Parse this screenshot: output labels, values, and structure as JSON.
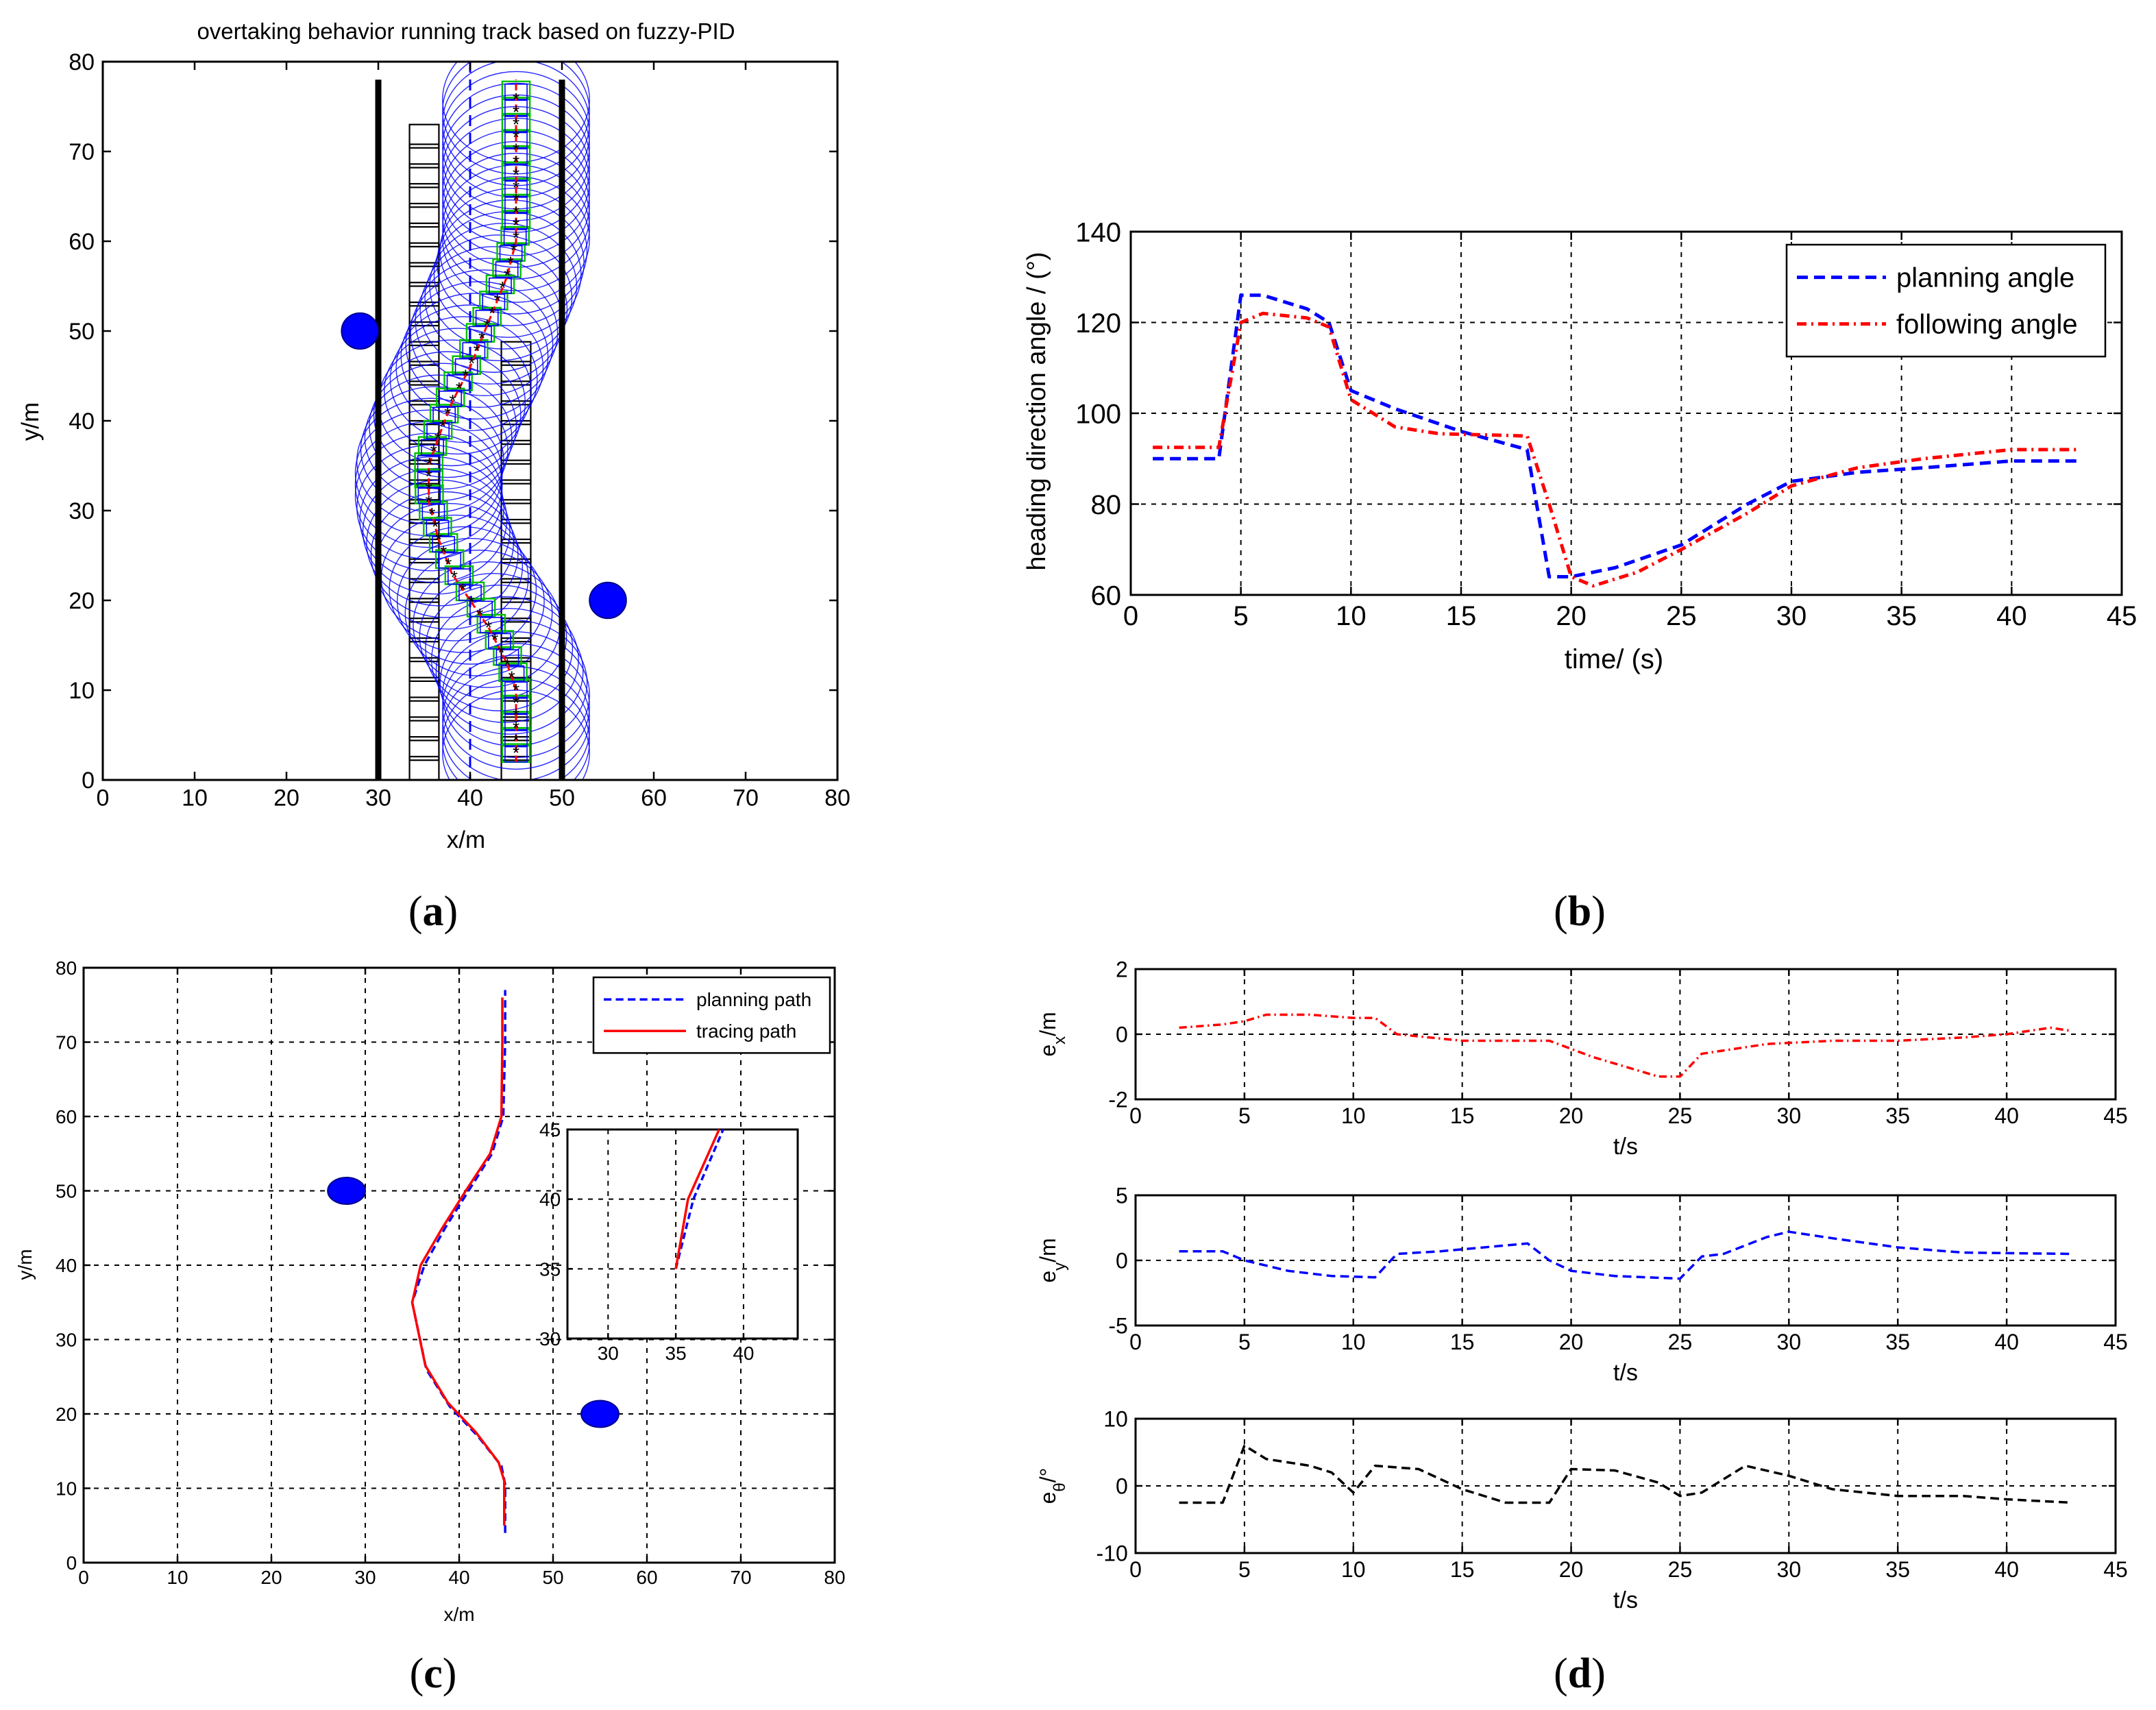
{
  "chart_data": [
    {
      "id": "a",
      "caption": "(a)",
      "type": "scatter",
      "title": "overtaking behavior running track based on fuzzy-PID",
      "xlabel": "x/m",
      "ylabel": "y/m",
      "xlim": [
        0,
        80
      ],
      "ylim": [
        0,
        80
      ],
      "xticks": [
        0,
        10,
        20,
        30,
        40,
        50,
        60,
        70,
        80
      ],
      "yticks": [
        0,
        10,
        20,
        30,
        40,
        50,
        60,
        70,
        80
      ],
      "grid": false,
      "road_boundaries_x": [
        30,
        50
      ],
      "lane_divider_x": 40,
      "obstacles": [
        [
          28,
          50
        ],
        [
          55,
          20
        ]
      ],
      "static_vehicle_column_x": 35,
      "static_vehicle_column_y": [
        0,
        74
      ],
      "obstacle_vehicle_column_x": 45,
      "obstacle_vehicle_column_y": [
        0,
        50
      ],
      "ego_path": [
        [
          45,
          2
        ],
        [
          45,
          10
        ],
        [
          44,
          13
        ],
        [
          42,
          17
        ],
        [
          40,
          20
        ],
        [
          38,
          23
        ],
        [
          36.5,
          27
        ],
        [
          35.5,
          31
        ],
        [
          35.5,
          35
        ],
        [
          36.5,
          38
        ],
        [
          38,
          42
        ],
        [
          40,
          46
        ],
        [
          42,
          51
        ],
        [
          44,
          56
        ],
        [
          45,
          60
        ],
        [
          45,
          67
        ],
        [
          45,
          78
        ]
      ],
      "colors": {
        "boundary": "#000000",
        "obstacle": "#0000FF",
        "envelope": "#0000FF",
        "path": "#FF0000",
        "frame": "#00C000"
      }
    },
    {
      "id": "b",
      "caption": "(b)",
      "type": "line",
      "xlabel": "time/ (s)",
      "ylabel": "heading direction angle / (°)",
      "xlim": [
        0,
        45
      ],
      "ylim": [
        60,
        140
      ],
      "xticks": [
        0,
        5,
        10,
        15,
        20,
        25,
        30,
        35,
        40,
        45
      ],
      "yticks": [
        60,
        80,
        100,
        120,
        140
      ],
      "grid": true,
      "legend_position": "top-right",
      "series": [
        {
          "name": "planning angle",
          "color": "#0000FF",
          "style": "dashed",
          "x": [
            1,
            4,
            5,
            6,
            8,
            9,
            10,
            12,
            15,
            18,
            19,
            20,
            22,
            25,
            28,
            30,
            33,
            36,
            40,
            43
          ],
          "y": [
            90,
            90,
            126,
            126,
            123,
            120,
            105,
            101,
            96,
            92,
            64,
            64,
            66,
            71,
            80,
            85,
            87,
            88,
            89.5,
            89.5
          ]
        },
        {
          "name": "following angle",
          "color": "#FF0000",
          "style": "dashdot",
          "x": [
            1,
            4,
            5,
            6,
            8,
            9,
            10,
            12,
            14,
            18,
            19,
            20,
            21,
            23,
            25,
            28,
            30,
            33,
            36,
            40,
            43
          ],
          "y": [
            92.5,
            92.5,
            120,
            122,
            121,
            119,
            103,
            97,
            95.5,
            95,
            80,
            64,
            62,
            65,
            70,
            78,
            84,
            88,
            90,
            92,
            92
          ]
        }
      ]
    },
    {
      "id": "c",
      "caption": "(c)",
      "type": "line",
      "xlabel": "x/m",
      "ylabel": "y/m",
      "xlim": [
        0,
        80
      ],
      "ylim": [
        0,
        80
      ],
      "xticks": [
        0,
        10,
        20,
        30,
        40,
        50,
        60,
        70,
        80
      ],
      "yticks": [
        0,
        10,
        20,
        30,
        40,
        50,
        60,
        70,
        80
      ],
      "grid": true,
      "legend_position": "top-right",
      "obstacles": [
        [
          28,
          50
        ],
        [
          55,
          20
        ]
      ],
      "series": [
        {
          "name": "planning path",
          "color": "#0000FF",
          "style": "dashed",
          "x": [
            44.9,
            44.9,
            44.5,
            42,
            39,
            36.5,
            35,
            36.3,
            38.5,
            41,
            43.5,
            44.7,
            44.9,
            44.9
          ],
          "y": [
            4,
            10.5,
            13,
            17,
            21,
            26,
            35,
            40,
            45,
            50,
            55,
            60,
            70,
            77
          ]
        },
        {
          "name": "tracing path",
          "color": "#FF0000",
          "style": "solid",
          "x": [
            44.8,
            44.8,
            44.2,
            41.8,
            38.8,
            36.4,
            35,
            35.9,
            38.2,
            40.7,
            43.3,
            44.5,
            44.6,
            44.6
          ],
          "y": [
            5,
            11,
            13.5,
            17.5,
            21.5,
            26.5,
            35,
            40,
            45,
            50,
            55,
            60,
            70,
            76
          ]
        }
      ],
      "inset": {
        "xlim": [
          27,
          44
        ],
        "ylim": [
          30,
          45
        ],
        "xticks": [
          30,
          35,
          40
        ],
        "yticks": [
          30,
          35,
          40,
          45
        ],
        "grid": true
      }
    },
    {
      "id": "d",
      "caption": "(d)",
      "type": "line",
      "subplots": [
        {
          "ylabel": "e_x/m",
          "xlabel": "t/s",
          "xlim": [
            0,
            45
          ],
          "ylim": [
            -2,
            2
          ],
          "xticks": [
            0,
            5,
            10,
            15,
            20,
            25,
            30,
            35,
            40,
            45
          ],
          "yticks": [
            -2,
            0,
            2
          ],
          "color": "#FF0000",
          "style": "dashdot",
          "x": [
            2,
            4,
            5,
            6,
            8,
            10,
            11,
            12,
            15,
            17,
            19,
            21,
            24,
            25,
            26,
            27,
            29,
            32,
            35,
            38,
            40,
            42,
            43
          ],
          "y": [
            0.2,
            0.3,
            0.4,
            0.6,
            0.6,
            0.5,
            0.5,
            0,
            -0.2,
            -0.2,
            -0.2,
            -0.7,
            -1.3,
            -1.3,
            -0.6,
            -0.5,
            -0.3,
            -0.2,
            -0.2,
            -0.1,
            0,
            0.2,
            0.1
          ]
        },
        {
          "ylabel": "e_y/m",
          "xlabel": "t/s",
          "xlim": [
            0,
            45
          ],
          "ylim": [
            -5,
            5
          ],
          "xticks": [
            0,
            5,
            10,
            15,
            20,
            25,
            30,
            35,
            40,
            45
          ],
          "yticks": [
            -5,
            0,
            5
          ],
          "color": "#0000FF",
          "style": "dashed",
          "x": [
            2,
            4,
            5,
            7,
            9,
            11,
            12,
            14,
            16,
            18,
            19,
            20,
            22,
            25,
            26,
            27,
            29,
            30,
            32,
            35,
            38,
            43
          ],
          "y": [
            0.7,
            0.7,
            0,
            -0.8,
            -1.2,
            -1.3,
            0.5,
            0.7,
            1,
            1.3,
            0,
            -0.8,
            -1.2,
            -1.4,
            0.3,
            0.5,
            1.8,
            2.2,
            1.7,
            1,
            0.6,
            0.5
          ]
        },
        {
          "ylabel": "e_θ/°",
          "xlabel": "t/s",
          "xlim": [
            0,
            45
          ],
          "ylim": [
            -10,
            10
          ],
          "xticks": [
            0,
            5,
            10,
            15,
            20,
            25,
            30,
            35,
            40,
            45
          ],
          "yticks": [
            -10,
            0,
            10
          ],
          "color": "#000000",
          "style": "dashed",
          "x": [
            2,
            4,
            5,
            6,
            8,
            9,
            10,
            11,
            13,
            15,
            17,
            19,
            20,
            22,
            24,
            25,
            26,
            27,
            28,
            30,
            32,
            35,
            38,
            40,
            43
          ],
          "y": [
            -2.5,
            -2.5,
            6,
            4,
            3,
            2,
            -1,
            3,
            2.5,
            -0.5,
            -2.5,
            -2.5,
            2.5,
            2.3,
            0.5,
            -1.5,
            -1,
            1,
            3,
            1.5,
            -0.5,
            -1.5,
            -1.5,
            -2,
            -2.5
          ]
        }
      ]
    }
  ]
}
